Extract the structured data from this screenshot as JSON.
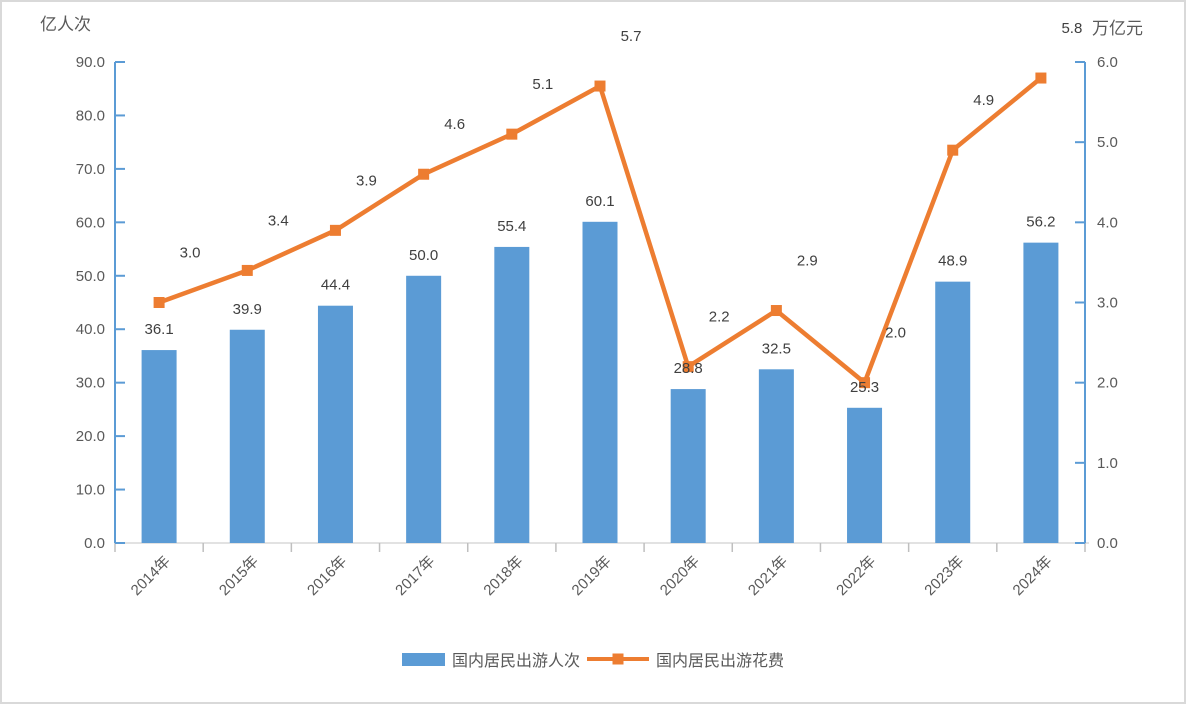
{
  "chart_data": {
    "type": "bar",
    "subtype": "bar-line-combo",
    "title": "",
    "categories": [
      "2014年",
      "2015年",
      "2016年",
      "2017年",
      "2018年",
      "2019年",
      "2020年",
      "2021年",
      "2022年",
      "2023年",
      "2024年"
    ],
    "series": [
      {
        "name": "国内居民出游人次",
        "type": "bar",
        "axis": "left",
        "color": "#5B9BD5",
        "values": [
          36.1,
          39.9,
          44.4,
          50.0,
          55.4,
          60.1,
          28.8,
          32.5,
          25.3,
          48.9,
          56.2
        ],
        "labels": [
          "36.1",
          "39.9",
          "44.4",
          "50.0",
          "55.4",
          "60.1",
          "28.8",
          "32.5",
          "25.3",
          "48.9",
          "56.2"
        ]
      },
      {
        "name": "国内居民出游花费",
        "type": "line",
        "axis": "right",
        "color": "#ED7D31",
        "values": [
          3.0,
          3.4,
          3.9,
          4.6,
          5.1,
          5.7,
          2.2,
          2.9,
          2.0,
          4.9,
          5.8
        ],
        "labels": [
          "3.0",
          "3.4",
          "3.9",
          "4.6",
          "5.1",
          "5.7",
          "2.2",
          "2.9",
          "2.0",
          "4.9",
          "5.8"
        ]
      }
    ],
    "left_axis": {
      "title": "亿人次",
      "min": 0,
      "max": 90,
      "step": 10,
      "tick_labels": [
        "0.0",
        "10.0",
        "20.0",
        "30.0",
        "40.0",
        "50.0",
        "60.0",
        "70.0",
        "80.0",
        "90.0"
      ],
      "color": "#5B9BD5"
    },
    "right_axis": {
      "title": "万亿元",
      "min": 0,
      "max": 6,
      "step": 1,
      "tick_labels": [
        "0.0",
        "1.0",
        "2.0",
        "3.0",
        "4.0",
        "5.0",
        "6.0"
      ],
      "color": "#5B9BD5"
    },
    "x_axis": {
      "line_color": "#D9D9D9",
      "tick_color": "#BFBFBF",
      "label_color": "#595959",
      "label_rotation": -45
    },
    "grid": "off",
    "legend_position": "bottom",
    "data_label_color": "#404040",
    "tick_label_color": "#595959"
  }
}
